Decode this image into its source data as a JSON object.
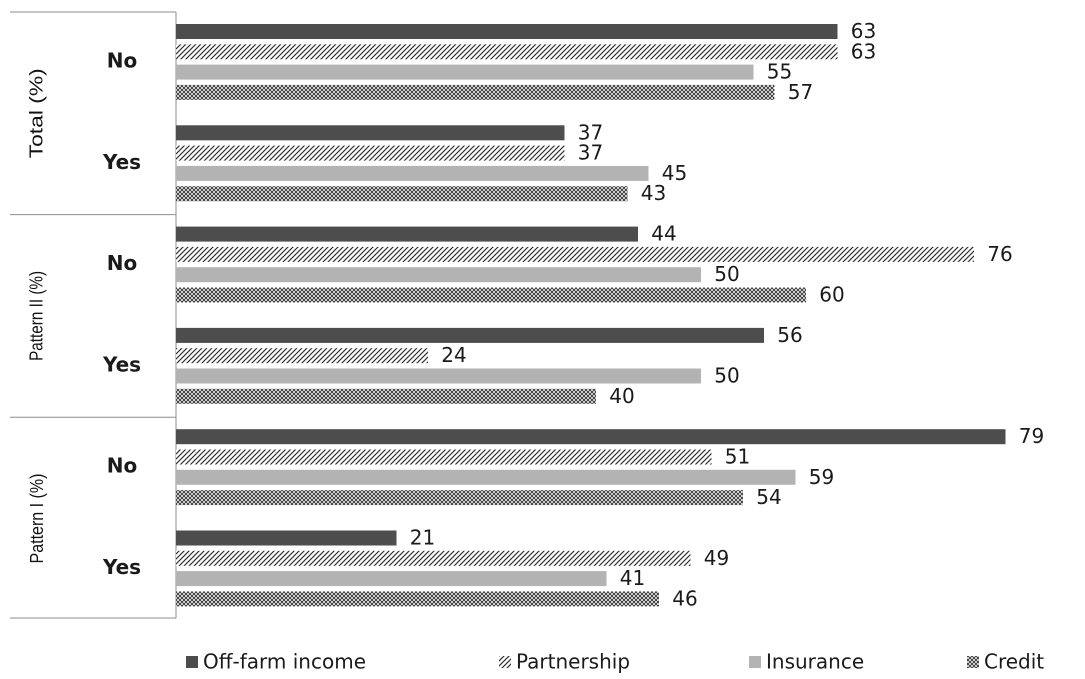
{
  "chart_data": {
    "type": "bar",
    "orientation": "horizontal",
    "groups": [
      {
        "label": "Total (%)",
        "categories": [
          {
            "label": "No",
            "values": [
              63,
              63,
              55,
              57
            ]
          },
          {
            "label": "Yes",
            "values": [
              37,
              37,
              45,
              43
            ]
          }
        ]
      },
      {
        "label": "Pattern II (%)",
        "categories": [
          {
            "label": "No",
            "values": [
              44,
              76,
              50,
              60
            ]
          },
          {
            "label": "Yes",
            "values": [
              56,
              24,
              50,
              40
            ]
          }
        ]
      },
      {
        "label": "Pattern I (%)",
        "categories": [
          {
            "label": "No",
            "values": [
              79,
              51,
              59,
              54
            ]
          },
          {
            "label": "Yes",
            "values": [
              21,
              49,
              41,
              46
            ]
          }
        ]
      }
    ],
    "series": [
      {
        "name": "Off-farm income",
        "color": "#4d4d4d",
        "pattern": "solid"
      },
      {
        "name": "Partnership",
        "color": "#4d4d4d",
        "pattern": "diagonal-hatch"
      },
      {
        "name": "Insurance",
        "color": "#b3b3b3",
        "pattern": "solid"
      },
      {
        "name": "Credit",
        "color": "#4d4d4d",
        "pattern": "crosshatch"
      }
    ],
    "xlim": [
      0,
      100
    ],
    "legend": "bottom",
    "grid": false
  }
}
